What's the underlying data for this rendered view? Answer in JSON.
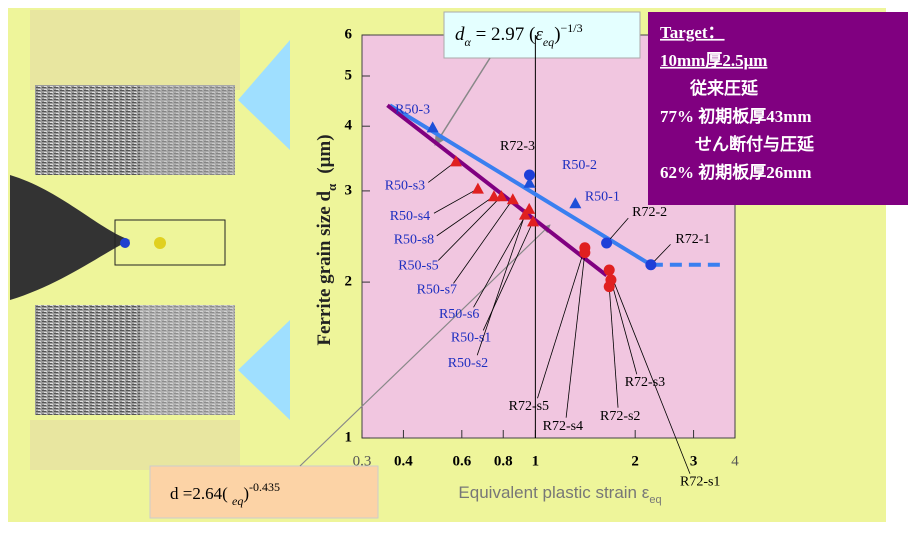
{
  "target_box": {
    "lines": [
      "Target：",
      "10mm厚2.5μm",
      "従来圧延",
      "77% 初期板厚43mm",
      "せん断付与圧延",
      "62% 初期板厚26mm"
    ]
  },
  "chart_data": {
    "type": "scatter",
    "xlabel": "Equivalent plastic strain  ε",
    "xlabel_sub": "eq",
    "ylabel": "Ferrite grain size  d",
    "ylabel_sub": "α",
    "ylabel_unit": "(μm)",
    "xlog": true,
    "ylog": true,
    "xlim": [
      0.3,
      4
    ],
    "ylim": [
      1,
      6
    ],
    "xticks": [
      0.3,
      0.4,
      0.6,
      0.8,
      1,
      2,
      3,
      4
    ],
    "yticks": [
      1,
      2,
      3,
      4,
      5,
      6
    ],
    "reference_x": 1,
    "series": [
      {
        "marker": "triangle",
        "color": "#1e4fd8",
        "label_color": "#1e2fc0",
        "x": [
          0.49,
          0.96,
          1.32
        ],
        "values": [
          3.98,
          3.11,
          2.84
        ],
        "labels": [
          "R50-3",
          "R50-2",
          "R50-1"
        ]
      },
      {
        "marker": "circle",
        "color": "#1e3fd8",
        "label_color": "#000000",
        "x": [
          0.96,
          1.64,
          2.23
        ],
        "values": [
          3.22,
          2.38,
          2.16
        ],
        "labels": [
          "R72-3",
          "R72-2",
          "R72-1"
        ]
      },
      {
        "marker": "triangle",
        "color": "#e02020",
        "label_color": "#1e2fc0",
        "x": [
          0.576,
          0.671,
          0.75,
          0.79,
          0.855,
          0.958,
          0.984,
          0.93
        ],
        "values": [
          3.42,
          3.03,
          2.93,
          2.93,
          2.89,
          2.77,
          2.62,
          2.7
        ],
        "labels": [
          "R50-s3",
          "R50-s4",
          "R50-s8",
          "R50-s5",
          "R50-s7",
          "R50-s6",
          "R50-s1",
          "R50-s2"
        ]
      },
      {
        "marker": "circle",
        "color": "#e02020",
        "label_color": "#000000",
        "x": [
          1.41,
          1.41,
          1.67,
          1.69,
          1.67
        ],
        "values": [
          2.33,
          2.28,
          2.11,
          2.02,
          1.96
        ],
        "labels": [
          "R72-s5",
          "R72-s4",
          "R72-s1",
          "R72-s3",
          "R72-s2"
        ]
      }
    ],
    "lines": [
      {
        "color": "#3a7ff0",
        "dashed": false,
        "x": [
          0.364,
          2.23
        ],
        "values": [
          4.39,
          2.16
        ]
      },
      {
        "color": "#3a7ff0",
        "dashed": true,
        "x": [
          2.23,
          3.65
        ],
        "values": [
          2.16,
          2.16
        ]
      },
      {
        "color": "#800080",
        "dashed": false,
        "x": [
          0.358,
          1.64
        ],
        "values": [
          4.39,
          2.06
        ]
      }
    ],
    "equations": [
      {
        "parts": [
          {
            "t": "d",
            "i": true
          },
          {
            "t": "α",
            "sub": true
          },
          {
            "t": " = 2.97 ("
          },
          {
            "t": "ε",
            "i": true
          },
          {
            "t": "eq",
            "sub": true
          },
          {
            "t": ")"
          },
          {
            "t": "−1/3",
            "sup": true
          }
        ]
      },
      {
        "parts": [
          {
            "t": "d"
          },
          {
            "t": "  =2.64(      "
          },
          {
            "t": "eq",
            "sub": true
          },
          {
            "t": ")"
          },
          {
            "t": "-0.435",
            "sup": true
          }
        ]
      }
    ]
  }
}
